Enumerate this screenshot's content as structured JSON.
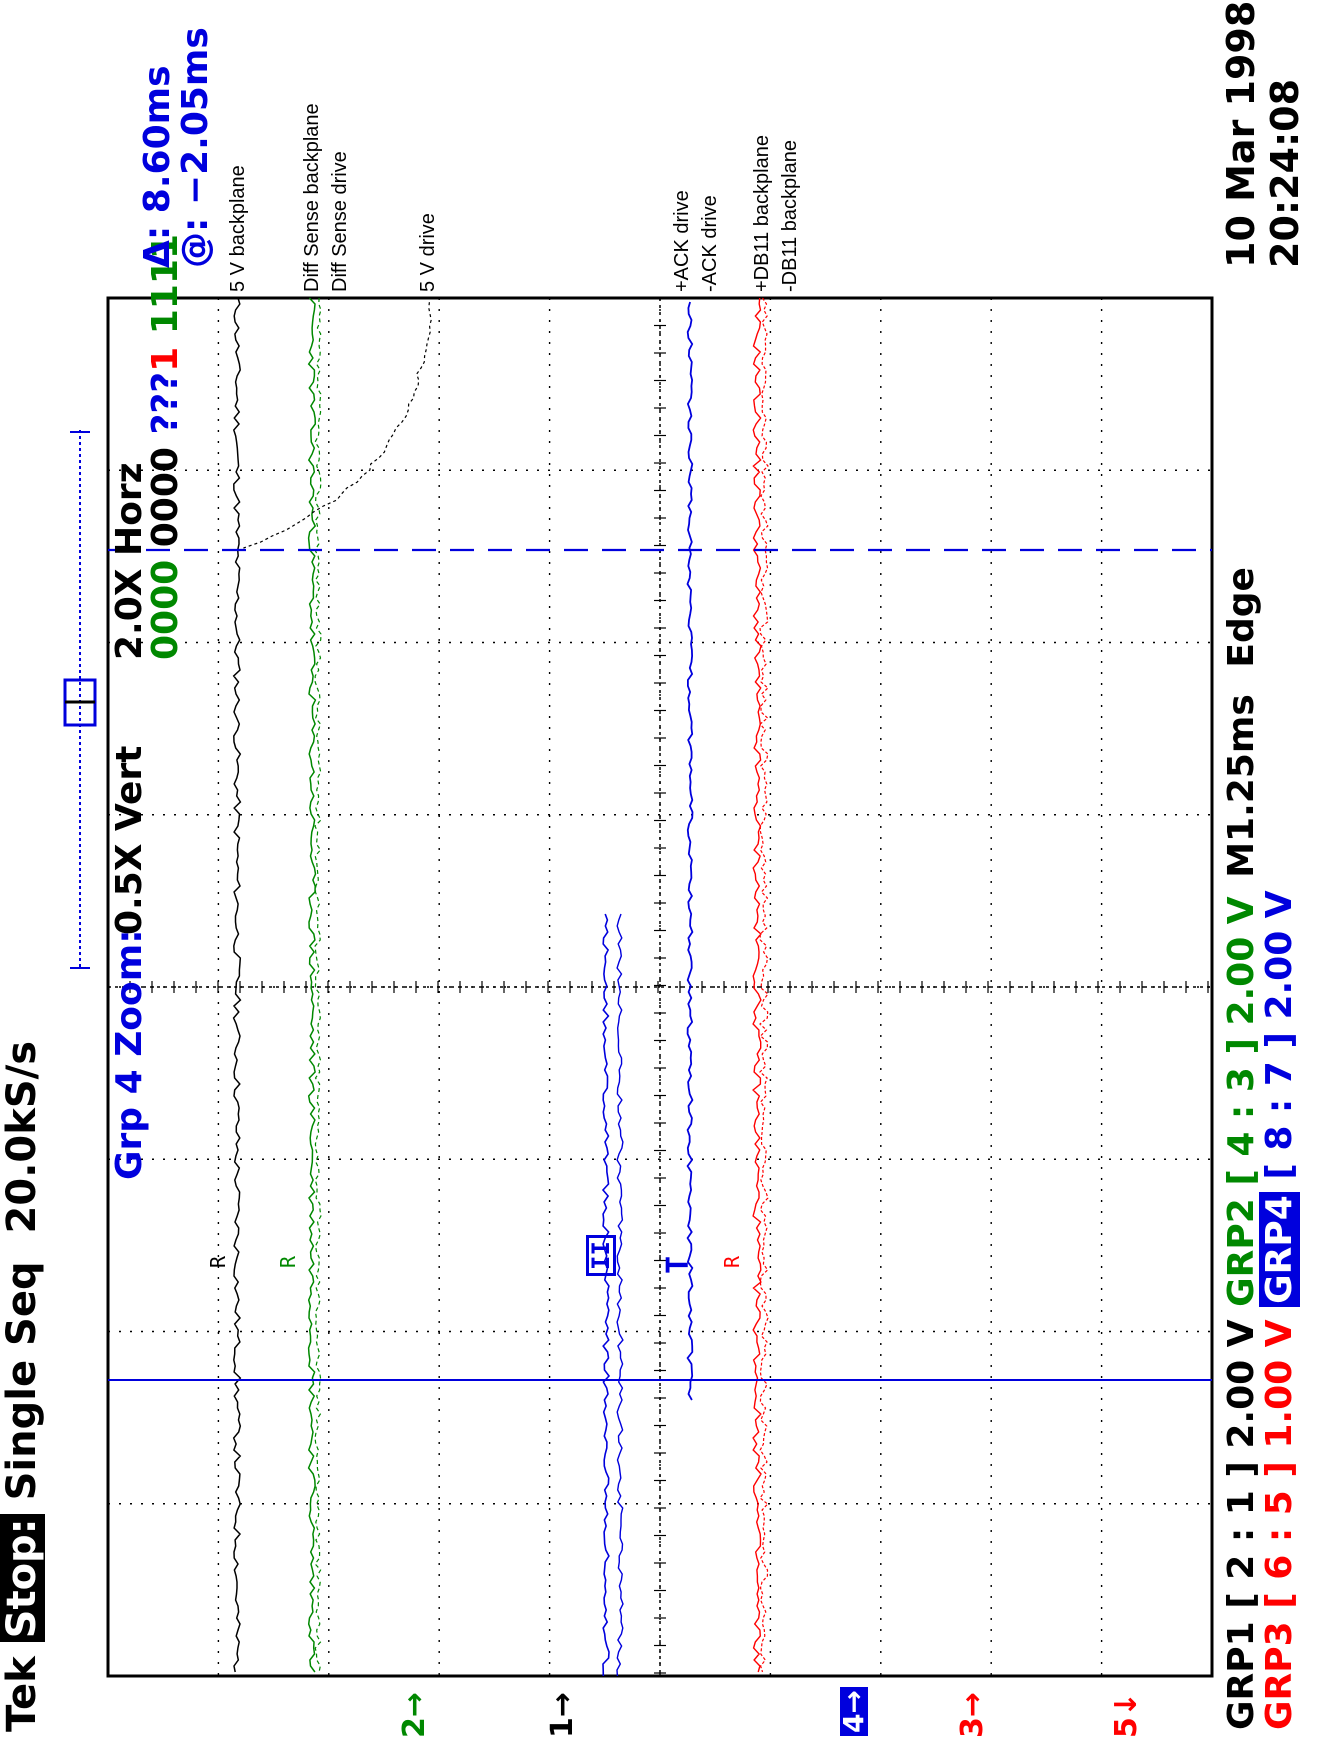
{
  "status": {
    "brand": "Tek",
    "state": "Stop:",
    "mode": "Single Seq",
    "sample_rate": "20.0kS/s"
  },
  "zoom": {
    "group": "Grp 4",
    "label": "Zoom:",
    "vert": "0.5X Vert",
    "horz": "2.0X Horz"
  },
  "cursor_readout": {
    "delta": "Δ: 8.60ms",
    "at": "@: −2.05ms"
  },
  "bus_values": {
    "green": "0000",
    "black": "0000",
    "blue": "????",
    "red": "1",
    "green2": "1111"
  },
  "bus_values_text": {
    "seg1": "0000",
    "seg2": " 0000",
    "seg3": " ???",
    "seg4": "1",
    "seg5": " 1111"
  },
  "channel_labels": {
    "v5_backplane": "5 V backplane",
    "diff_sense_backplane": "Diff Sense backplane",
    "diff_sense_drive": "Diff Sense drive",
    "v5_drive": "5 V drive",
    "ack_plus": "+ACK drive",
    "ack_minus": "-ACK drive",
    "db11_plus": "+DB11 backplane",
    "db11_minus": "-DB11 backplane"
  },
  "markers": {
    "m1": "1→",
    "m2": "2→",
    "m3": "3→",
    "m4": "4→",
    "m5": "5↓",
    "r_black": "R",
    "r_green": "R",
    "r_blue_box": "II",
    "r_blue_t": "T",
    "r_red": "R"
  },
  "bottom": {
    "grp1": "GRP1",
    "grp1_ch": "[ 2 : 1 ]",
    "grp1_volts": "2.00 V",
    "grp2": "GRP2",
    "grp2_ch": "[ 4 : 3 ]",
    "grp2_volts": "2.00 V",
    "grp3": "GRP3",
    "grp3_ch": "[ 6 : 5 ]",
    "grp3_volts": "1.00 V",
    "grp4": "GRP4",
    "grp4_ch": "[ 8 : 7 ]",
    "grp4_volts": "2.00 V",
    "timebase": "M1.25ms",
    "trigger": "Edge"
  },
  "datetime": {
    "date": "10 Mar 1998",
    "time": "20:24:08"
  },
  "colors": {
    "black": "#000000",
    "green": "#008800",
    "red": "#ff0000",
    "blue": "#0000dd",
    "grid": "#000000"
  }
}
